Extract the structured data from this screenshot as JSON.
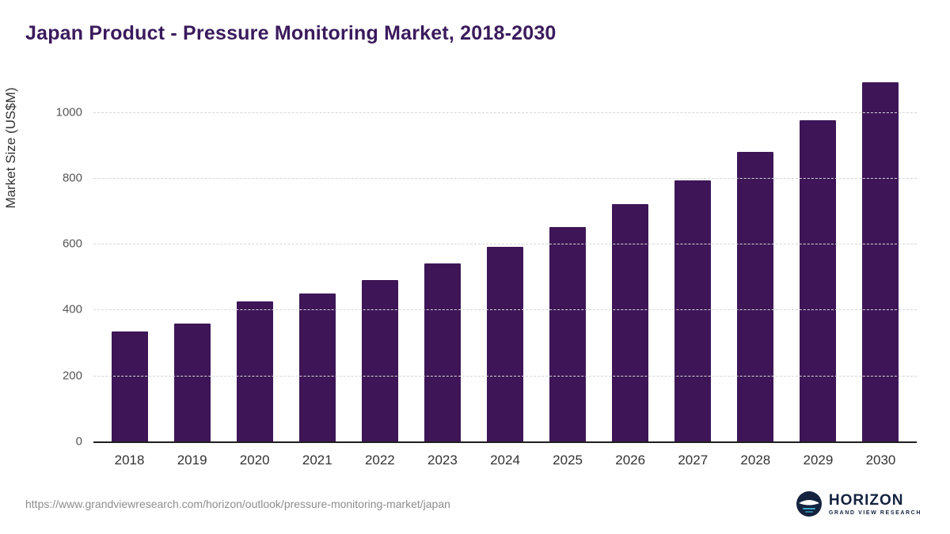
{
  "title": "Japan Product - Pressure Monitoring Market, 2018-2030",
  "source_url": "https://www.grandviewresearch.com/horizon/outlook/pressure-monitoring-market/japan",
  "brand": {
    "name": "HORIZON",
    "subtitle": "GRAND VIEW RESEARCH",
    "icon": "horizon-globe-icon",
    "navy": "#15233f",
    "teal": "#3aa6c9"
  },
  "colors": {
    "title": "#3a1a5c",
    "bar": "#3e1657",
    "gridline": "#d6d6d6",
    "axis": "#1f1f1f",
    "tick_label": "#555555",
    "url_text": "#8d8d8d"
  },
  "chart_data": {
    "type": "bar",
    "title": "Japan Product - Pressure Monitoring Market, 2018-2030",
    "categories": [
      "2018",
      "2019",
      "2020",
      "2021",
      "2022",
      "2023",
      "2024",
      "2025",
      "2026",
      "2027",
      "2028",
      "2029",
      "2030"
    ],
    "values": [
      335,
      358,
      425,
      448,
      490,
      540,
      592,
      650,
      720,
      793,
      878,
      975,
      1090
    ],
    "xlabel": "",
    "ylabel": "Market Size (US$M)",
    "ylim": [
      0,
      1100
    ],
    "yticks": [
      0,
      200,
      400,
      600,
      800,
      1000
    ],
    "grid": "horizontal-dashed",
    "legend": "none",
    "bar_color": "#3e1657"
  }
}
